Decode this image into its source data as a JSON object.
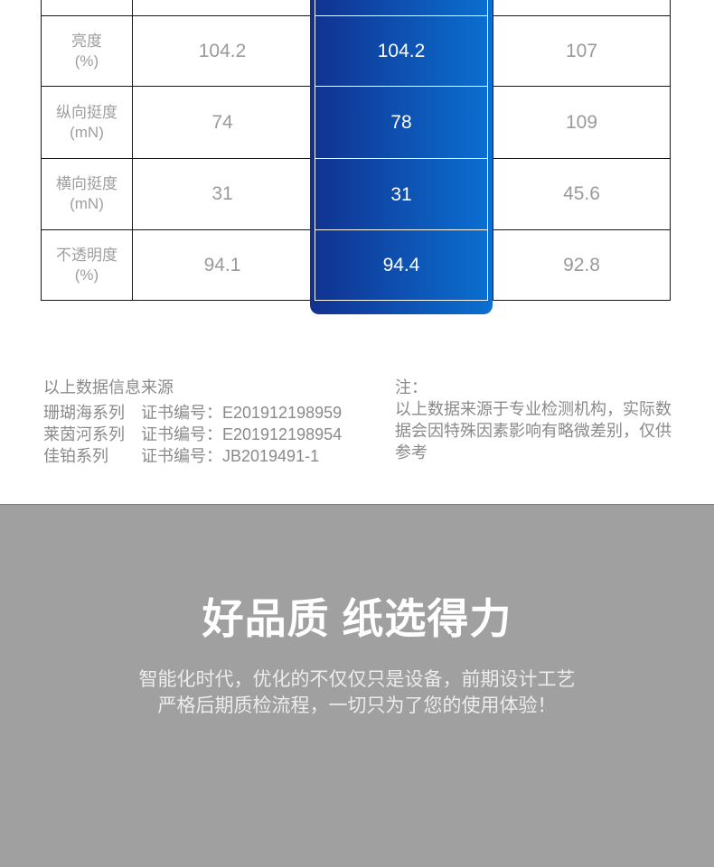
{
  "colors": {
    "highlight_gradient_start": "#11318f",
    "highlight_gradient_end": "#0a70d2",
    "table_border": "#161616",
    "muted_table_text": "#9a9a9a",
    "note_text": "#8a8a8a",
    "banner_background": "#a0a0a1",
    "banner_text": "#ffffff"
  },
  "comparison_table": {
    "rows": [
      {
        "label": "亮度",
        "unit": "(%)",
        "competitor_a": "104.2",
        "highlight": "104.2",
        "competitor_b": "107"
      },
      {
        "label": "纵向挺度",
        "unit": "(mN)",
        "competitor_a": "74",
        "highlight": "78",
        "competitor_b": "109"
      },
      {
        "label": "横向挺度",
        "unit": "(mN)",
        "competitor_a": "31",
        "highlight": "31",
        "competitor_b": "45.6"
      },
      {
        "label": "不透明度",
        "unit": "(%)",
        "competitor_a": "94.1",
        "highlight": "94.4",
        "competitor_b": "92.8"
      }
    ]
  },
  "sources": {
    "title": "以上数据信息来源",
    "items": [
      {
        "series": "珊瑚海系列",
        "cert_label": "证书编号：",
        "cert_number": "E201912198959"
      },
      {
        "series": "莱茵河系列",
        "cert_label": "证书编号：",
        "cert_number": "E201912198954"
      },
      {
        "series": "佳铂系列",
        "cert_label": "证书编号：",
        "cert_number": "JB2019491-1"
      }
    ]
  },
  "note": {
    "title": "注：",
    "body": "以上数据来源于专业检测机构，实际数据会因特殊因素影响有略微差别，仅供参考"
  },
  "banner": {
    "title": "好品质 纸选得力",
    "subtitle_line1": "智能化时代，优化的不仅仅只是设备，前期设计工艺",
    "subtitle_line2": "严格后期质检流程，一切只为了您的使用体验！"
  }
}
